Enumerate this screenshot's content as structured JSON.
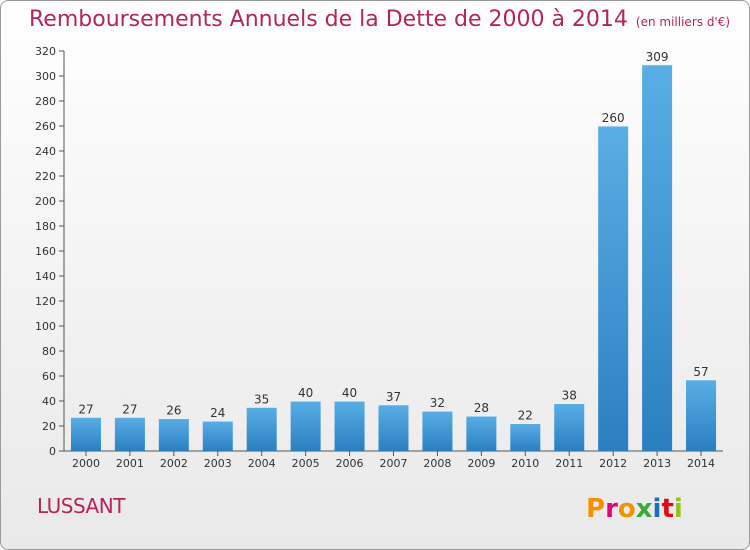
{
  "header": {
    "title": "Remboursements Annuels de la Dette de 2000 à 2014",
    "unit": "(en milliers d'€)"
  },
  "commune": "LUSSANT",
  "logo": {
    "text": "Proxiti",
    "colors": [
      "#f39200",
      "#e5007e",
      "#f39200",
      "#3aaa35",
      "#1d71b8",
      "#e30613",
      "#95c11f"
    ]
  },
  "chart_data": {
    "type": "bar",
    "title": "Remboursements Annuels de la Dette de 2000 à 2014",
    "categories": [
      "2000",
      "2001",
      "2002",
      "2003",
      "2004",
      "2005",
      "2006",
      "2007",
      "2008",
      "2009",
      "2010",
      "2011",
      "2012",
      "2013",
      "2014"
    ],
    "values": [
      27,
      27,
      26,
      24,
      35,
      40,
      40,
      37,
      32,
      28,
      22,
      38,
      260,
      309,
      57
    ],
    "ylim": [
      0,
      320
    ],
    "yticks": [
      0,
      20,
      40,
      60,
      80,
      100,
      120,
      140,
      160,
      180,
      200,
      220,
      240,
      260,
      280,
      300,
      320
    ],
    "grid": false,
    "colors": {
      "bar_light": "#5aaee6",
      "bar_dark": "#2a7fc0"
    }
  }
}
